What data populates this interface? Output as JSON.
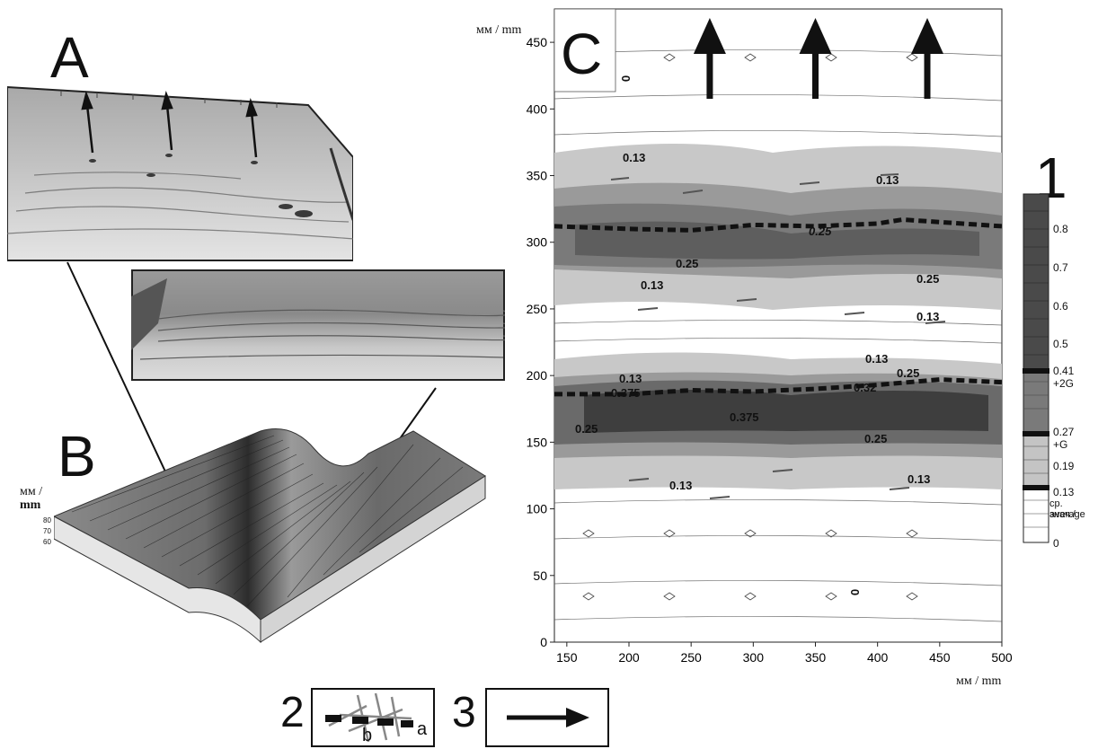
{
  "panels": {
    "a": {
      "letter": "A"
    },
    "b": {
      "letter": "B",
      "unit_ru": "мм /",
      "unit_en": "mm",
      "ticks": [
        "80",
        "70",
        "60"
      ]
    },
    "c": {
      "letter": "C",
      "y_unit": "мм / mm",
      "x_unit": "мм / mm",
      "contour_labels": [
        "0.13",
        "0.13",
        "0.25",
        "0.25",
        "0.13",
        "0.25",
        "0.13",
        "0.13",
        "0.25",
        "0.375",
        "0.25",
        "0.13",
        "0.13",
        "0.13",
        "0",
        "0",
        "0.25",
        "0.375",
        "0.32"
      ]
    }
  },
  "legend": {
    "number": "1",
    "scale_labels": [
      "0.8",
      "0.7",
      "0.6",
      "0.5",
      "0.41",
      "+2G",
      "0.27",
      "+G",
      "0.19",
      "0.13",
      "ср. знач./",
      "average",
      "0"
    ],
    "item2_number": "2",
    "item2_a": "a",
    "item2_b": "b",
    "item3_number": "3"
  },
  "chart_data": {
    "type": "heatmap",
    "title": "",
    "xlabel": "мм / mm",
    "ylabel": "мм / mm",
    "xlim": [
      140,
      500
    ],
    "ylim": [
      0,
      475
    ],
    "x_ticks": [
      150,
      200,
      250,
      300,
      350,
      400,
      450,
      500
    ],
    "y_ticks": [
      0,
      50,
      100,
      150,
      200,
      250,
      300,
      350,
      400,
      450
    ],
    "colorbar_levels": [
      0,
      0.13,
      0.19,
      0.27,
      0.41,
      0.5,
      0.6,
      0.7,
      0.8
    ],
    "dashed_ridge_lines": [
      {
        "x": [
          140,
          200,
          250,
          300,
          350,
          400,
          420,
          500
        ],
        "y": [
          312,
          310,
          309,
          313,
          312,
          314,
          317,
          312
        ]
      },
      {
        "x": [
          140,
          200,
          250,
          300,
          350,
          400,
          450,
          500
        ],
        "y": [
          186,
          186,
          189,
          188,
          190,
          193,
          197,
          195
        ]
      }
    ],
    "flow_arrows_x": [
      265,
      350,
      440
    ]
  },
  "colors": {
    "dark": "#3a3a3a",
    "mid": "#7a7a7a",
    "light": "#b8b8b8",
    "paler": "#d8d8d8",
    "photo_sky": "#8e8e8e",
    "photo_sand": "#cfcfcf"
  }
}
